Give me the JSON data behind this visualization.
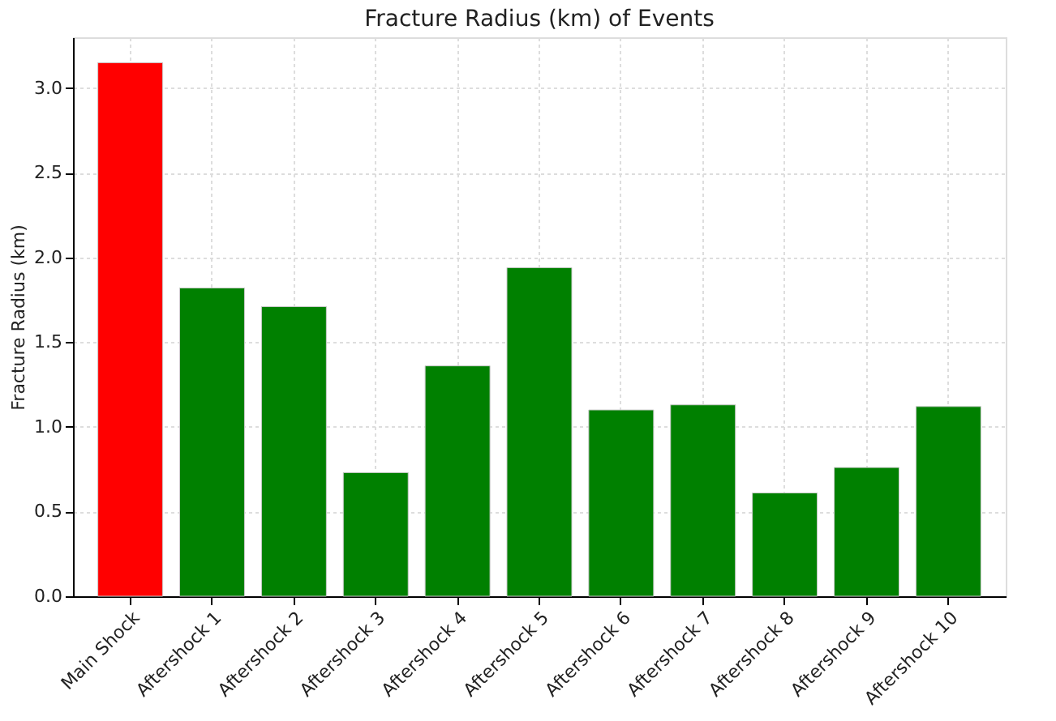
{
  "chart_data": {
    "type": "bar",
    "title": "Fracture Radius (km) of Events",
    "ylabel": "Fracture Radius (km)",
    "categories": [
      "Main Shock",
      "Aftershock 1",
      "Aftershock 2",
      "Aftershock 3",
      "Aftershock 4",
      "Aftershock 5",
      "Aftershock 6",
      "Aftershock 7",
      "Aftershock 8",
      "Aftershock 9",
      "Aftershock 10"
    ],
    "values": [
      3.15,
      1.82,
      1.71,
      0.73,
      1.36,
      1.94,
      1.1,
      1.13,
      0.61,
      0.76,
      1.12
    ],
    "colors": [
      "#ff0000",
      "#008000",
      "#008000",
      "#008000",
      "#008000",
      "#008000",
      "#008000",
      "#008000",
      "#008000",
      "#008000",
      "#008000"
    ],
    "ylim": [
      0,
      3.3
    ],
    "yticks": [
      {
        "value": 0,
        "label": "0.0"
      },
      {
        "value": 0.5,
        "label": "0.5"
      },
      {
        "value": 1,
        "label": "1.0"
      },
      {
        "value": 1.5,
        "label": "1.5"
      },
      {
        "value": 2,
        "label": "2.0"
      },
      {
        "value": 2.5,
        "label": "2.5"
      },
      {
        "value": 3,
        "label": "3.0"
      }
    ],
    "grid": true
  }
}
